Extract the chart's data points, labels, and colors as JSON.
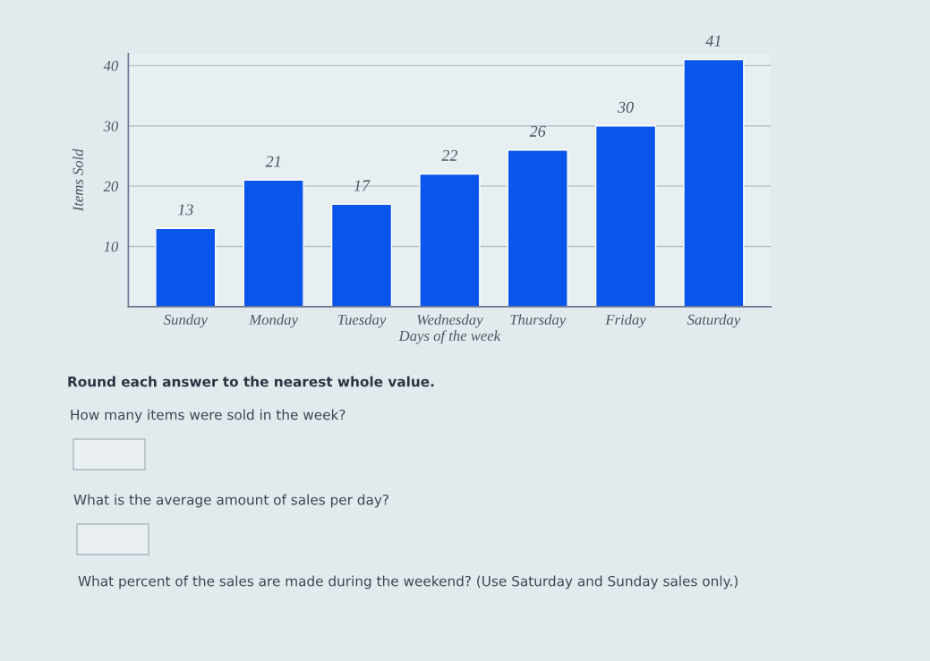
{
  "chart_data": {
    "type": "bar",
    "xlabel": "Days of the week",
    "ylabel": "Items Sold",
    "categories": [
      "Sunday",
      "Monday",
      "Tuesday",
      "Wednesday",
      "Thursday",
      "Friday",
      "Saturday"
    ],
    "values": [
      13,
      21,
      17,
      22,
      26,
      30,
      41
    ],
    "color": "#0a56ea",
    "ylim": [
      0,
      42
    ],
    "yticks": [
      10,
      20,
      30,
      40
    ],
    "grid": "y",
    "data_labels": true,
    "annotations": [
      "Round each answer to the nearest whole value.",
      "How many items were sold in the week?",
      "What is the average amount of sales per day?",
      "What percent of the sales are made during the weekend? (Use Saturday and Sunday sales only.)"
    ]
  }
}
